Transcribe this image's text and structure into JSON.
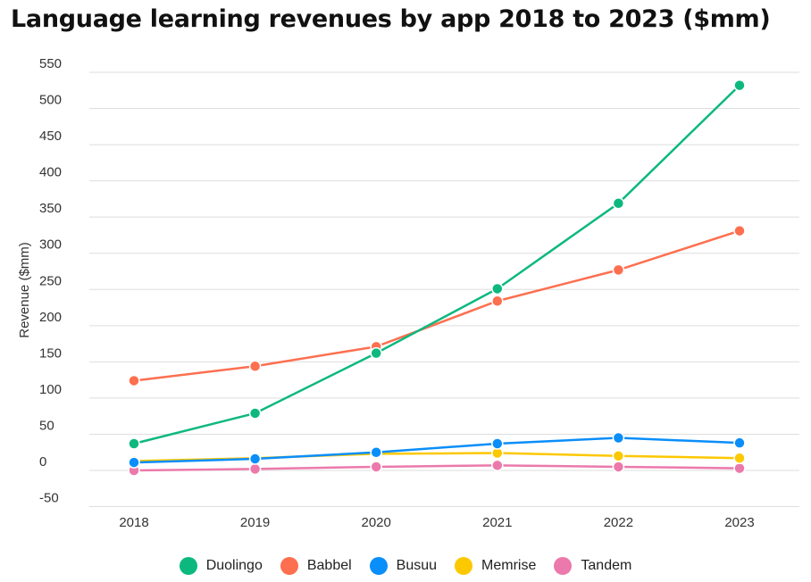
{
  "chart_data": {
    "type": "line",
    "title": "Language learning revenues by app 2018 to 2023 ($mm)",
    "xlabel": "",
    "ylabel": "Revenue ($mm)",
    "x": [
      "2018",
      "2019",
      "2020",
      "2021",
      "2022",
      "2023"
    ],
    "ylim": [
      -50,
      550
    ],
    "yticks": [
      550,
      500,
      450,
      400,
      350,
      300,
      250,
      200,
      150,
      100,
      50,
      0,
      -50
    ],
    "grid": true,
    "legend_position": "bottom",
    "series": [
      {
        "name": "Duolingo",
        "color": "#0db87f",
        "values": [
          37,
          79,
          162,
          251,
          369,
          532
        ]
      },
      {
        "name": "Babbel",
        "color": "#fd6f4f",
        "values": [
          124,
          144,
          171,
          234,
          277,
          331
        ]
      },
      {
        "name": "Busuu",
        "color": "#0a8ef9",
        "values": [
          11,
          16,
          25,
          37,
          45,
          38
        ]
      },
      {
        "name": "Memrise",
        "color": "#fcc800",
        "values": [
          13,
          17,
          23,
          24,
          20,
          17
        ]
      },
      {
        "name": "Tandem",
        "color": "#ec79ab",
        "values": [
          0,
          2,
          5,
          7,
          5,
          3
        ]
      }
    ]
  }
}
